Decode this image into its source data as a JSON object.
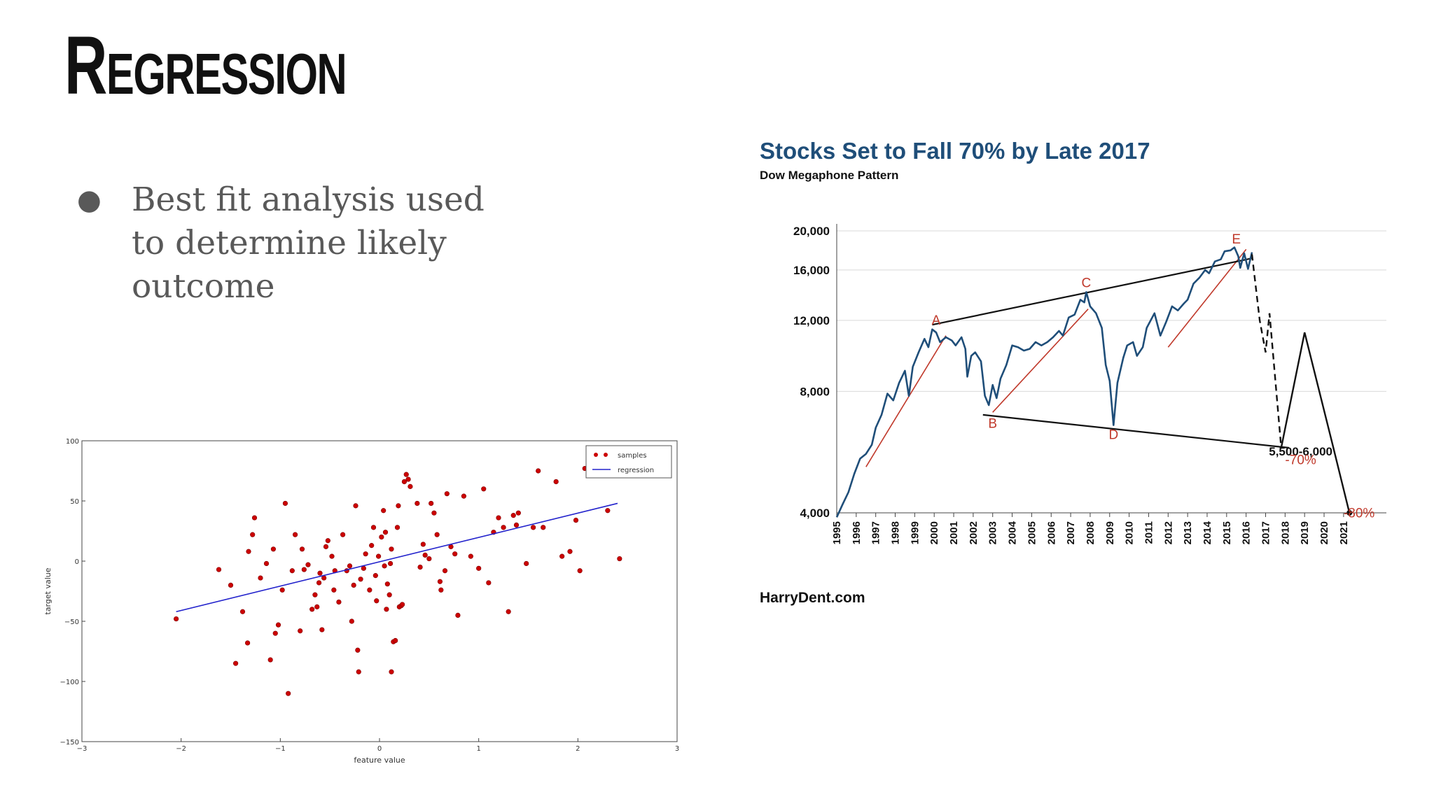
{
  "slide": {
    "title": "Regression",
    "bullets": [
      "Best fit analysis used to determine likely outcome"
    ]
  },
  "chart_data": [
    {
      "type": "scatter",
      "xlabel": "feature value",
      "ylabel": "target value",
      "xlim": [
        -3,
        3
      ],
      "ylim": [
        -150,
        100
      ],
      "xticks": [
        "−3",
        "−2",
        "−1",
        "0",
        "1",
        "2",
        "3"
      ],
      "yticks": [
        "100",
        "50",
        "0",
        "−50",
        "−100",
        "−150"
      ],
      "legend": {
        "position": "top-right",
        "entries": [
          "samples",
          "regression"
        ]
      },
      "colors": {
        "samples": "#cc0000",
        "regression": "#2222cc"
      },
      "regression": {
        "x": [
          -2.05,
          2.4
        ],
        "y": [
          -42,
          48
        ]
      },
      "points": [
        [
          -2.05,
          -48
        ],
        [
          -1.62,
          -7
        ],
        [
          -1.5,
          -20
        ],
        [
          -1.45,
          -85
        ],
        [
          -1.38,
          -42
        ],
        [
          -1.33,
          -68
        ],
        [
          -1.32,
          8
        ],
        [
          -1.28,
          22
        ],
        [
          -1.26,
          36
        ],
        [
          -1.2,
          -14
        ],
        [
          -1.14,
          -2
        ],
        [
          -1.1,
          -82
        ],
        [
          -1.07,
          10
        ],
        [
          -1.05,
          -60
        ],
        [
          -1.02,
          -53
        ],
        [
          -0.98,
          -24
        ],
        [
          -0.95,
          48
        ],
        [
          -0.92,
          -110
        ],
        [
          -0.88,
          -8
        ],
        [
          -0.85,
          22
        ],
        [
          -0.8,
          -58
        ],
        [
          -0.78,
          10
        ],
        [
          -0.76,
          -7
        ],
        [
          -0.72,
          -3
        ],
        [
          -0.68,
          -40
        ],
        [
          -0.65,
          -28
        ],
        [
          -0.63,
          -38
        ],
        [
          -0.61,
          -18
        ],
        [
          -0.6,
          -10
        ],
        [
          -0.58,
          -57
        ],
        [
          -0.56,
          -14
        ],
        [
          -0.54,
          12
        ],
        [
          -0.52,
          17
        ],
        [
          -0.48,
          4
        ],
        [
          -0.46,
          -24
        ],
        [
          -0.45,
          -8
        ],
        [
          -0.41,
          -34
        ],
        [
          -0.37,
          22
        ],
        [
          -0.33,
          -8
        ],
        [
          -0.3,
          -4
        ],
        [
          -0.28,
          -50
        ],
        [
          -0.26,
          -20
        ],
        [
          -0.24,
          46
        ],
        [
          -0.22,
          -74
        ],
        [
          -0.21,
          -92
        ],
        [
          -0.19,
          -15
        ],
        [
          -0.16,
          -6
        ],
        [
          -0.14,
          6
        ],
        [
          -0.1,
          -24
        ],
        [
          -0.08,
          13
        ],
        [
          -0.06,
          28
        ],
        [
          -0.04,
          -12
        ],
        [
          -0.03,
          -33
        ],
        [
          -0.01,
          4
        ],
        [
          0.02,
          20
        ],
        [
          0.04,
          42
        ],
        [
          0.05,
          -4
        ],
        [
          0.06,
          24
        ],
        [
          0.07,
          -40
        ],
        [
          0.08,
          -19
        ],
        [
          0.1,
          -28
        ],
        [
          0.11,
          -2
        ],
        [
          0.12,
          10
        ],
        [
          0.12,
          -92
        ],
        [
          0.14,
          -67
        ],
        [
          0.16,
          -66
        ],
        [
          0.18,
          28
        ],
        [
          0.19,
          46
        ],
        [
          0.2,
          -38
        ],
        [
          0.22,
          -37
        ],
        [
          0.23,
          -36
        ],
        [
          0.25,
          66
        ],
        [
          0.27,
          72
        ],
        [
          0.29,
          68
        ],
        [
          0.31,
          62
        ],
        [
          0.38,
          48
        ],
        [
          0.41,
          -5
        ],
        [
          0.44,
          14
        ],
        [
          0.46,
          5
        ],
        [
          0.5,
          2
        ],
        [
          0.52,
          48
        ],
        [
          0.55,
          40
        ],
        [
          0.58,
          22
        ],
        [
          0.61,
          -17
        ],
        [
          0.62,
          -24
        ],
        [
          0.66,
          -8
        ],
        [
          0.68,
          56
        ],
        [
          0.72,
          12
        ],
        [
          0.76,
          6
        ],
        [
          0.79,
          -45
        ],
        [
          0.85,
          54
        ],
        [
          0.92,
          4
        ],
        [
          1.0,
          -6
        ],
        [
          1.05,
          60
        ],
        [
          1.1,
          -18
        ],
        [
          1.15,
          24
        ],
        [
          1.2,
          36
        ],
        [
          1.25,
          28
        ],
        [
          1.3,
          -42
        ],
        [
          1.35,
          38
        ],
        [
          1.38,
          30
        ],
        [
          1.4,
          40
        ],
        [
          1.48,
          -2
        ],
        [
          1.55,
          28
        ],
        [
          1.6,
          75
        ],
        [
          1.65,
          28
        ],
        [
          1.78,
          66
        ],
        [
          1.84,
          4
        ],
        [
          1.92,
          8
        ],
        [
          1.98,
          34
        ],
        [
          2.02,
          -8
        ],
        [
          2.07,
          77
        ],
        [
          2.3,
          42
        ],
        [
          2.42,
          2
        ]
      ]
    },
    {
      "type": "line",
      "title": "Stocks Set to Fall 70% by Late 2017",
      "subtitle": "Dow Megaphone Pattern",
      "yscale": "log",
      "ylim": [
        4000,
        20000
      ],
      "yticks": [
        {
          "value": 20000,
          "label": "20,000"
        },
        {
          "value": 16000,
          "label": "16,000"
        },
        {
          "value": 12000,
          "label": "12,000"
        },
        {
          "value": 8000,
          "label": "8,000"
        },
        {
          "value": 4000,
          "label": "4,000"
        }
      ],
      "xlim": [
        1995,
        2021.4
      ],
      "xticks": [
        "1995",
        "1996",
        "1997",
        "1998",
        "1999",
        "2000",
        "2001",
        "2002",
        "2003",
        "2004",
        "2005",
        "2006",
        "2007",
        "2008",
        "2009",
        "2010",
        "2011",
        "2012",
        "2013",
        "2014",
        "2015",
        "2016",
        "2017",
        "2018",
        "2019",
        "2020",
        "2021"
      ],
      "colors": {
        "dow": "#1f4e79",
        "trend": "#c0392b",
        "megaphone": "#111111"
      },
      "dow": [
        [
          1995.0,
          3900
        ],
        [
          1995.3,
          4200
        ],
        [
          1995.6,
          4500
        ],
        [
          1995.9,
          5000
        ],
        [
          1996.2,
          5450
        ],
        [
          1996.5,
          5600
        ],
        [
          1996.8,
          5900
        ],
        [
          1997.0,
          6500
        ],
        [
          1997.3,
          7000
        ],
        [
          1997.6,
          7900
        ],
        [
          1997.9,
          7600
        ],
        [
          1998.2,
          8400
        ],
        [
          1998.5,
          9000
        ],
        [
          1998.7,
          7800
        ],
        [
          1998.9,
          9200
        ],
        [
          1999.2,
          10000
        ],
        [
          1999.5,
          10800
        ],
        [
          1999.7,
          10300
        ],
        [
          1999.9,
          11400
        ],
        [
          2000.1,
          11200
        ],
        [
          2000.3,
          10600
        ],
        [
          2000.6,
          10900
        ],
        [
          2000.9,
          10700
        ],
        [
          2001.1,
          10400
        ],
        [
          2001.4,
          10900
        ],
        [
          2001.6,
          10200
        ],
        [
          2001.7,
          8700
        ],
        [
          2001.9,
          9800
        ],
        [
          2002.1,
          10000
        ],
        [
          2002.4,
          9500
        ],
        [
          2002.6,
          7800
        ],
        [
          2002.8,
          7400
        ],
        [
          2003.0,
          8300
        ],
        [
          2003.2,
          7700
        ],
        [
          2003.4,
          8600
        ],
        [
          2003.7,
          9300
        ],
        [
          2004.0,
          10400
        ],
        [
          2004.3,
          10300
        ],
        [
          2004.6,
          10100
        ],
        [
          2004.9,
          10200
        ],
        [
          2005.2,
          10600
        ],
        [
          2005.5,
          10400
        ],
        [
          2005.8,
          10600
        ],
        [
          2006.1,
          10900
        ],
        [
          2006.4,
          11300
        ],
        [
          2006.6,
          11000
        ],
        [
          2006.9,
          12200
        ],
        [
          2007.2,
          12400
        ],
        [
          2007.5,
          13500
        ],
        [
          2007.7,
          13300
        ],
        [
          2007.8,
          14100
        ],
        [
          2008.0,
          13000
        ],
        [
          2008.3,
          12500
        ],
        [
          2008.6,
          11500
        ],
        [
          2008.8,
          9300
        ],
        [
          2009.0,
          8500
        ],
        [
          2009.2,
          6600
        ],
        [
          2009.4,
          8400
        ],
        [
          2009.7,
          9700
        ],
        [
          2009.9,
          10400
        ],
        [
          2010.2,
          10600
        ],
        [
          2010.4,
          9800
        ],
        [
          2010.7,
          10300
        ],
        [
          2010.9,
          11500
        ],
        [
          2011.3,
          12500
        ],
        [
          2011.6,
          11000
        ],
        [
          2011.9,
          11900
        ],
        [
          2012.2,
          13000
        ],
        [
          2012.5,
          12700
        ],
        [
          2012.8,
          13200
        ],
        [
          2013.0,
          13500
        ],
        [
          2013.3,
          14800
        ],
        [
          2013.6,
          15300
        ],
        [
          2013.9,
          16000
        ],
        [
          2014.1,
          15700
        ],
        [
          2014.4,
          16800
        ],
        [
          2014.7,
          17000
        ],
        [
          2014.9,
          17800
        ],
        [
          2015.2,
          17900
        ],
        [
          2015.4,
          18200
        ],
        [
          2015.6,
          17300
        ],
        [
          2015.7,
          16200
        ],
        [
          2015.9,
          17600
        ],
        [
          2016.1,
          16100
        ],
        [
          2016.3,
          17700
        ]
      ],
      "forecast": [
        [
          2016.3,
          17500
        ],
        [
          2016.7,
          12000
        ],
        [
          2017.0,
          10000
        ],
        [
          2017.2,
          12500
        ],
        [
          2017.8,
          5800
        ],
        [
          2019.0,
          11200
        ],
        [
          2020.4,
          6000
        ],
        [
          2021.3,
          4000
        ]
      ],
      "megaphone_upper": [
        [
          1999.9,
          11700
        ],
        [
          2016.3,
          17100
        ]
      ],
      "megaphone_lower": [
        [
          2002.5,
          7000
        ],
        [
          2018.2,
          5800
        ]
      ],
      "trend_lines": [
        [
          [
            1996.5,
            5200
          ],
          [
            2000.6,
            11000
          ]
        ],
        [
          [
            2003.0,
            7100
          ],
          [
            2007.9,
            12800
          ]
        ],
        [
          [
            2012.0,
            10300
          ],
          [
            2016.0,
            18000
          ]
        ]
      ],
      "points": [
        {
          "label": "A",
          "x": 2000.1,
          "y": 11700
        },
        {
          "label": "B",
          "x": 2003.0,
          "y": 6500
        },
        {
          "label": "C",
          "x": 2007.8,
          "y": 14500
        },
        {
          "label": "D",
          "x": 2009.2,
          "y": 6100
        },
        {
          "label": "E",
          "x": 2015.5,
          "y": 18600
        }
      ],
      "annotations": [
        {
          "text": "5,500-6,000",
          "x": 2018.8,
          "y": 5550
        },
        {
          "text": "-70%",
          "x": 2018.8,
          "y": 5280
        },
        {
          "text": "-80%",
          "x": 2021.8,
          "y": 3900
        }
      ],
      "source": "HarryDent.com"
    }
  ]
}
